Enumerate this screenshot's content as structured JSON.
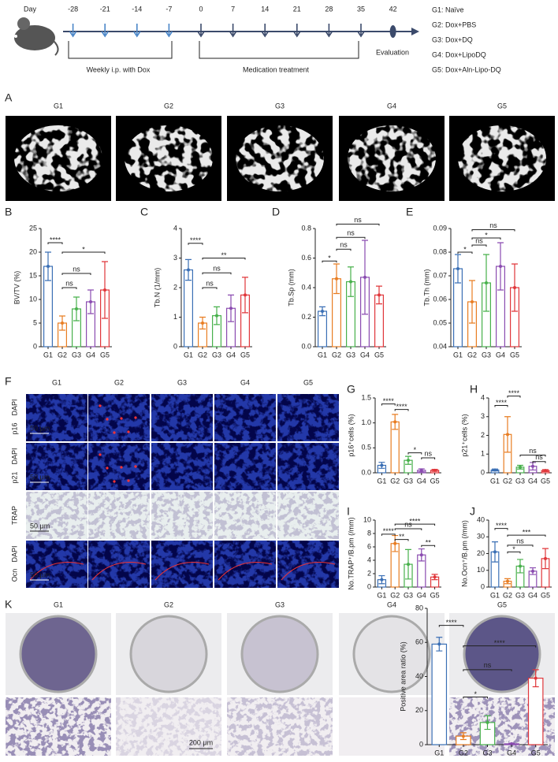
{
  "timeline": {
    "day_label": "Day",
    "days": [
      -28,
      -21,
      -14,
      -7,
      0,
      7,
      14,
      21,
      28,
      35,
      42
    ],
    "phase1": "Weekly i.p. with Dox",
    "phase2": "Medication treatment",
    "end": "Evaluation"
  },
  "legend": [
    "G1:  Naïve",
    "G2:  Dox+PBS",
    "G3:  Dox+DQ",
    "G4:  Dox+LipoDQ",
    "G5:  Dox+Aln-Lipo-DQ"
  ],
  "panel_a": {
    "letter": "A",
    "labels": [
      "G1",
      "G2",
      "G3",
      "G4",
      "G5"
    ]
  },
  "panel_f": {
    "letter": "F",
    "columns": [
      "G1",
      "G2",
      "G3",
      "G4",
      "G5"
    ],
    "rows": [
      {
        "stain": "DAPI",
        "marker": "p16",
        "scale": "50 μm"
      },
      {
        "stain": "DAPI",
        "marker": "p21",
        "scale": "50 μm"
      },
      {
        "marker": "TRAP",
        "scale": "50 μm"
      },
      {
        "stain": "DAPI",
        "marker": "Ocn",
        "scale": "50 μm"
      }
    ]
  },
  "panel_k": {
    "letter": "K",
    "columns": [
      "G1",
      "G2",
      "G3",
      "G4",
      "G5"
    ],
    "scale": "200 μm"
  },
  "chart_data": [
    {
      "letter": "B",
      "type": "bar",
      "ylabel": "BV/TV (%)",
      "categories": [
        "G1",
        "G2",
        "G3",
        "G4",
        "G5"
      ],
      "values": [
        17,
        5,
        8,
        9.5,
        12
      ],
      "errors": [
        3,
        1.5,
        2.5,
        2.5,
        6
      ],
      "colors": [
        "#3a6fb5",
        "#e87d22",
        "#47b04b",
        "#8a4bb0",
        "#e0363a"
      ],
      "ylim": [
        0,
        25
      ],
      "yticks": [
        0,
        5,
        10,
        15,
        20,
        25
      ],
      "brackets": [
        {
          "label": "****",
          "from": "G1",
          "to": "G2",
          "y": 22
        },
        {
          "label": "*",
          "from": "G2",
          "to": "G5",
          "y": 20
        },
        {
          "label": "ns",
          "from": "G2",
          "to": "G4",
          "y": 15.5
        },
        {
          "label": "ns",
          "from": "G2",
          "to": "G3",
          "y": 12.5
        }
      ]
    },
    {
      "letter": "C",
      "type": "bar",
      "ylabel": "Tb.N (1/mm)",
      "categories": [
        "G1",
        "G2",
        "G3",
        "G4",
        "G5"
      ],
      "values": [
        2.6,
        0.8,
        1.05,
        1.3,
        1.75
      ],
      "errors": [
        0.35,
        0.2,
        0.3,
        0.45,
        0.6
      ],
      "colors": [
        "#3a6fb5",
        "#e87d22",
        "#47b04b",
        "#8a4bb0",
        "#e0363a"
      ],
      "ylim": [
        0,
        4
      ],
      "yticks": [
        0,
        1,
        2,
        3,
        4
      ],
      "brackets": [
        {
          "label": "****",
          "from": "G1",
          "to": "G2",
          "y": 3.5
        },
        {
          "label": "**",
          "from": "G2",
          "to": "G5",
          "y": 3.0
        },
        {
          "label": "ns",
          "from": "G2",
          "to": "G4",
          "y": 2.5
        },
        {
          "label": "ns",
          "from": "G2",
          "to": "G3",
          "y": 2.0
        }
      ]
    },
    {
      "letter": "D",
      "type": "bar",
      "ylabel": "Tb.Sp (mm)",
      "categories": [
        "G1",
        "G2",
        "G3",
        "G4",
        "G5"
      ],
      "values": [
        0.24,
        0.46,
        0.44,
        0.47,
        0.35
      ],
      "errors": [
        0.03,
        0.1,
        0.1,
        0.25,
        0.06
      ],
      "colors": [
        "#3a6fb5",
        "#e87d22",
        "#47b04b",
        "#8a4bb0",
        "#e0363a"
      ],
      "ylim": [
        0,
        0.8
      ],
      "yticks": [
        {
          "value": 0,
          "label": "0.0"
        },
        0.2,
        0.4,
        0.6,
        0.8
      ],
      "brackets": [
        {
          "label": "*",
          "from": "G1",
          "to": "G2",
          "y": 0.58
        },
        {
          "label": "ns",
          "from": "G2",
          "to": "G3",
          "y": 0.66
        },
        {
          "label": "ns",
          "from": "G2",
          "to": "G4",
          "y": 0.74
        },
        {
          "label": "ns",
          "from": "G2",
          "to": "G5",
          "y": 0.83
        }
      ]
    },
    {
      "letter": "E",
      "type": "bar",
      "ylabel": "Tb.Th (mm)",
      "categories": [
        "G1",
        "G2",
        "G3",
        "G4",
        "G5"
      ],
      "values": [
        0.073,
        0.059,
        0.067,
        0.074,
        0.065
      ],
      "errors": [
        0.006,
        0.009,
        0.012,
        0.01,
        0.01
      ],
      "colors": [
        "#3a6fb5",
        "#e87d22",
        "#47b04b",
        "#8a4bb0",
        "#e0363a"
      ],
      "ylim": [
        0.04,
        0.09
      ],
      "yticks": [
        0.04,
        0.05,
        0.06,
        0.07,
        0.08,
        0.09
      ],
      "brackets": [
        {
          "label": "*",
          "from": "G1",
          "to": "G2",
          "y": 0.08
        },
        {
          "label": "ns",
          "from": "G2",
          "to": "G3",
          "y": 0.083
        },
        {
          "label": "*",
          "from": "G2",
          "to": "G4",
          "y": 0.086
        },
        {
          "label": "ns",
          "from": "G2",
          "to": "G5",
          "y": 0.0895
        }
      ]
    },
    {
      "letter": "G",
      "type": "bar",
      "ylabel": "p16⁺cells (%)",
      "categories": [
        "G1",
        "G2",
        "G3",
        "G4",
        "G5"
      ],
      "values": [
        0.15,
        1.02,
        0.25,
        0.05,
        0.05
      ],
      "errors": [
        0.06,
        0.15,
        0.08,
        0.03,
        0.02
      ],
      "colors": [
        "#3a6fb5",
        "#e87d22",
        "#47b04b",
        "#8a4bb0",
        "#e0363a"
      ],
      "ylim": [
        0,
        1.5
      ],
      "yticks": [
        {
          "value": 0,
          "label": "0.0"
        },
        0.5,
        {
          "value": 1,
          "label": "1.0"
        },
        1.5
      ],
      "brackets": [
        {
          "label": "****",
          "from": "G1",
          "to": "G2",
          "y": 1.38
        },
        {
          "label": "****",
          "from": "G2",
          "to": "G3",
          "y": 1.27
        },
        {
          "label": "*",
          "from": "G3",
          "to": "G4",
          "y": 0.4
        },
        {
          "label": "ns",
          "from": "G4",
          "to": "G5",
          "y": 0.3
        }
      ]
    },
    {
      "letter": "H",
      "type": "bar",
      "ylabel": "p21⁺cells (%)",
      "categories": [
        "G1",
        "G2",
        "G3",
        "G4",
        "G5"
      ],
      "values": [
        0.15,
        2.05,
        0.3,
        0.35,
        0.12
      ],
      "errors": [
        0.05,
        0.95,
        0.1,
        0.2,
        0.05
      ],
      "colors": [
        "#3a6fb5",
        "#e87d22",
        "#47b04b",
        "#8a4bb0",
        "#e0363a"
      ],
      "ylim": [
        0,
        4
      ],
      "yticks": [
        0,
        1,
        2,
        3,
        4
      ],
      "brackets": [
        {
          "label": "****",
          "from": "G1",
          "to": "G2",
          "y": 3.6
        },
        {
          "label": "****",
          "from": "G2",
          "to": "G3",
          "y": 4.1
        },
        {
          "label": "ns",
          "from": "G3",
          "to": "G5",
          "y": 0.95
        },
        {
          "label": "ns",
          "from": "G4",
          "to": "G5",
          "y": 0.6
        }
      ]
    },
    {
      "letter": "I",
      "type": "bar",
      "ylabel": "No.TRAP⁺/B.pm (/mm)",
      "categories": [
        "G1",
        "G2",
        "G3",
        "G4",
        "G5"
      ],
      "values": [
        1.1,
        6.5,
        3.4,
        4.8,
        1.5
      ],
      "errors": [
        0.6,
        1.2,
        2.2,
        0.9,
        0.4
      ],
      "colors": [
        "#3a6fb5",
        "#e87d22",
        "#47b04b",
        "#8a4bb0",
        "#e0363a"
      ],
      "ylim": [
        0,
        10
      ],
      "yticks": [
        0,
        2,
        4,
        6,
        8,
        10
      ],
      "brackets": [
        {
          "label": "****",
          "from": "G2",
          "to": "G5",
          "y": 9.4
        },
        {
          "label": "ns",
          "from": "G2",
          "to": "G4",
          "y": 8.7
        },
        {
          "label": "****",
          "from": "G1",
          "to": "G2",
          "y": 7.9
        },
        {
          "label": "**",
          "from": "G2",
          "to": "G3",
          "y": 7.1
        },
        {
          "label": "**",
          "from": "G4",
          "to": "G5",
          "y": 6.2
        }
      ]
    },
    {
      "letter": "J",
      "type": "bar",
      "ylabel": "No.Ocn⁺/B.pm (/mm)",
      "categories": [
        "G1",
        "G2",
        "G3",
        "G4",
        "G5"
      ],
      "values": [
        21,
        3.5,
        12.5,
        9.5,
        17
      ],
      "errors": [
        6,
        1.5,
        4,
        2,
        6
      ],
      "colors": [
        "#3a6fb5",
        "#e87d22",
        "#47b04b",
        "#8a4bb0",
        "#e0363a"
      ],
      "ylim": [
        0,
        40
      ],
      "yticks": [
        0,
        10,
        20,
        30,
        40
      ],
      "brackets": [
        {
          "label": "****",
          "from": "G1",
          "to": "G2",
          "y": 35
        },
        {
          "label": "***",
          "from": "G2",
          "to": "G5",
          "y": 31
        },
        {
          "label": "ns",
          "from": "G2",
          "to": "G4",
          "y": 25
        },
        {
          "label": "*",
          "from": "G2",
          "to": "G3",
          "y": 21
        }
      ]
    },
    {
      "type": "bar",
      "ylabel": "Positive area ratio (%)",
      "categories": [
        "G1",
        "G2",
        "G3",
        "G4",
        "G5"
      ],
      "values": [
        59,
        5,
        13,
        0.5,
        39
      ],
      "errors": [
        4,
        2,
        4,
        0.3,
        5
      ],
      "colors": [
        "#3a6fb5",
        "#e87d22",
        "#47b04b",
        "#8a4bb0",
        "#e0363a"
      ],
      "ylim": [
        0,
        80
      ],
      "yticks": [
        0,
        20,
        40,
        60,
        80
      ],
      "brackets": [
        {
          "label": "****",
          "from": "G1",
          "to": "G2",
          "y": 70
        },
        {
          "label": "****",
          "from": "G2",
          "to": "G5",
          "y": 58
        },
        {
          "label": "ns",
          "from": "G2",
          "to": "G4",
          "y": 44
        },
        {
          "label": "*",
          "from": "G2",
          "to": "G3",
          "y": 28
        }
      ]
    }
  ]
}
